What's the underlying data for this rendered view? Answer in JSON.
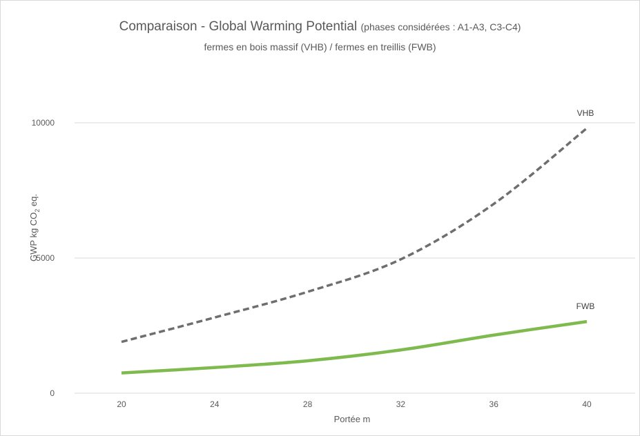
{
  "chart_data": {
    "type": "line",
    "title": "Comparaison - Global Warming Potential",
    "title_note": "(phases considérées : A1-A3, C3-C4)",
    "subtitle": "fermes en bois massif (VHB) / fermes en treillis (FWB)",
    "xlabel": "Portée m",
    "ylabel_prefix": "GWP kg CO",
    "ylabel_sub": "2",
    "ylabel_suffix": " eq.",
    "x": [
      20,
      24,
      28,
      32,
      36,
      40
    ],
    "x_tick_labels": [
      "20",
      "24",
      "28",
      "32",
      "36",
      "40"
    ],
    "ylim": [
      0,
      10000
    ],
    "y_ticks": [
      0,
      5000,
      10000
    ],
    "y_tick_labels": [
      "0",
      "5000",
      "10000"
    ],
    "grid": true,
    "series": [
      {
        "name": "VHB",
        "values": [
          1900,
          2800,
          3750,
          4950,
          7000,
          9800
        ],
        "color": "#6e6e6e",
        "style": "dashed"
      },
      {
        "name": "FWB",
        "values": [
          750,
          950,
          1200,
          1600,
          2150,
          2650
        ],
        "color": "#7fba4f",
        "style": "solid"
      }
    ]
  }
}
